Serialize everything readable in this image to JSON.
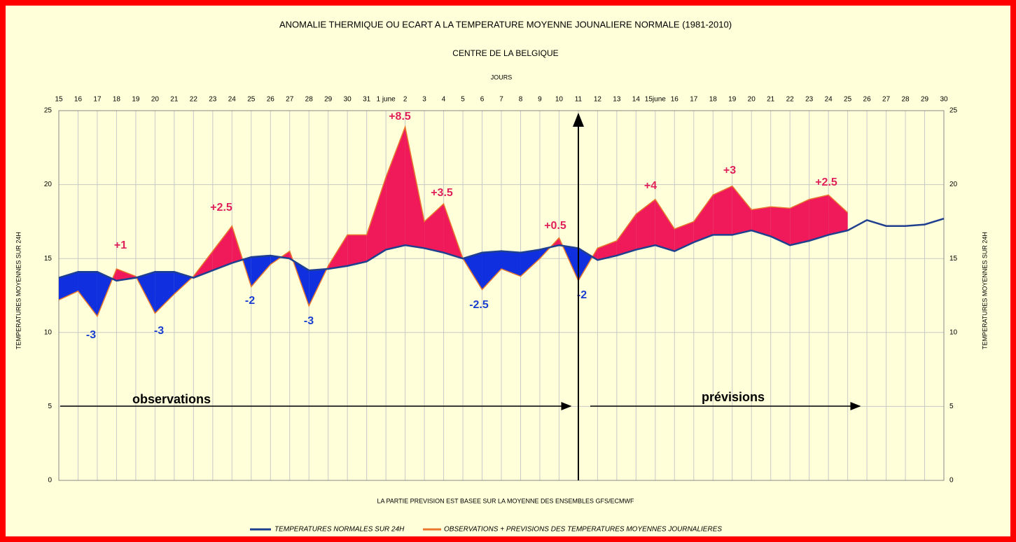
{
  "chart_data": {
    "type": "line",
    "title": "ANOMALIE THERMIQUE OU ECART A LA TEMPERATURE MOYENNE JOUNALIERE NORMALE (1981-2010)",
    "subtitle": "CENTRE DE LA BELGIQUE",
    "x_label": "JOURS",
    "y_label": "TEMPERATURES MOYENNES SUR 24H",
    "y2_label": "TEMPERATURES MOYENNES SUR 24H",
    "footnote": "LA PARTIE PREVISION EST BASEE SUR LA MOYENNE DES ENSEMBLES GFS/ECMWF",
    "categories": [
      "15",
      "16",
      "17",
      "18",
      "19",
      "20",
      "21",
      "22",
      "23",
      "24",
      "25",
      "26",
      "27",
      "28",
      "29",
      "30",
      "31",
      "1 june",
      "2",
      "3",
      "4",
      "5",
      "6",
      "7",
      "8",
      "9",
      "10",
      "11",
      "12",
      "13",
      "14",
      "15june",
      "16",
      "17",
      "18",
      "19",
      "20",
      "21",
      "22",
      "23",
      "24",
      "25",
      "26",
      "27",
      "28",
      "29",
      "30"
    ],
    "series": [
      {
        "name": "TEMPERATURES NORMALES SUR 24H",
        "color": "#1f3f8f",
        "values": [
          13.7,
          14.1,
          14.1,
          13.5,
          13.7,
          14.1,
          14.1,
          13.7,
          14.2,
          14.7,
          15.1,
          15.2,
          15.0,
          14.2,
          14.3,
          14.5,
          14.8,
          15.6,
          15.9,
          15.7,
          15.4,
          15.0,
          15.4,
          15.5,
          15.4,
          15.6,
          15.9,
          15.7,
          14.9,
          15.2,
          15.6,
          15.9,
          15.5,
          16.1,
          16.6,
          16.6,
          16.9,
          16.5,
          15.9,
          16.2,
          16.6,
          16.9,
          17.6,
          17.2,
          17.2,
          17.3,
          17.7
        ]
      },
      {
        "name": "OBSERVATIONS + PREVISIONS DES TEMPERATURES MOYENNES JOURNALIERES",
        "color": "#e8782e",
        "values": [
          12.2,
          12.8,
          11.1,
          14.3,
          13.8,
          11.3,
          12.6,
          13.8,
          15.5,
          17.2,
          13.1,
          14.6,
          15.5,
          11.8,
          14.5,
          16.6,
          16.6,
          20.5,
          23.9,
          17.5,
          18.7,
          15.0,
          12.9,
          14.3,
          13.8,
          15.0,
          16.4,
          13.5,
          15.7,
          16.2,
          18.0,
          19.0,
          17.0,
          17.5,
          19.3,
          19.9,
          18.3,
          18.5,
          18.4,
          19.0,
          19.3,
          18.1,
          null,
          null,
          null,
          null,
          null
        ]
      }
    ],
    "above_color": "#f0195a",
    "below_color": "#1030e0",
    "annotations": [
      {
        "text": "+8.5",
        "color": "#e0205a"
      },
      {
        "text": "+1",
        "color": "#e0205a"
      },
      {
        "text": "+2.5",
        "color": "#e0205a"
      },
      {
        "text": "+3.5",
        "color": "#e0205a"
      },
      {
        "text": "+0.5",
        "color": "#e0205a"
      },
      {
        "text": "+4",
        "color": "#e0205a"
      },
      {
        "text": "+3",
        "color": "#e0205a"
      },
      {
        "text": "+2.5",
        "color": "#e0205a"
      },
      {
        "text": "-3",
        "color": "#1a3fd0"
      },
      {
        "text": "-3",
        "color": "#1a3fd0"
      },
      {
        "text": "-2",
        "color": "#1a3fd0"
      },
      {
        "text": "-3",
        "color": "#1a3fd0"
      },
      {
        "text": "-2.5",
        "color": "#1a3fd0"
      },
      {
        "text": "-2",
        "color": "#1a3fd0"
      }
    ],
    "period_labels": [
      "observations",
      "prévisions"
    ],
    "ylim": [
      0,
      25
    ],
    "yticks": [
      0,
      5,
      10,
      15,
      20,
      25
    ],
    "y2lim": [
      0,
      25
    ],
    "y2ticks": [
      0,
      5,
      10,
      15,
      20,
      25
    ],
    "grid": true
  }
}
